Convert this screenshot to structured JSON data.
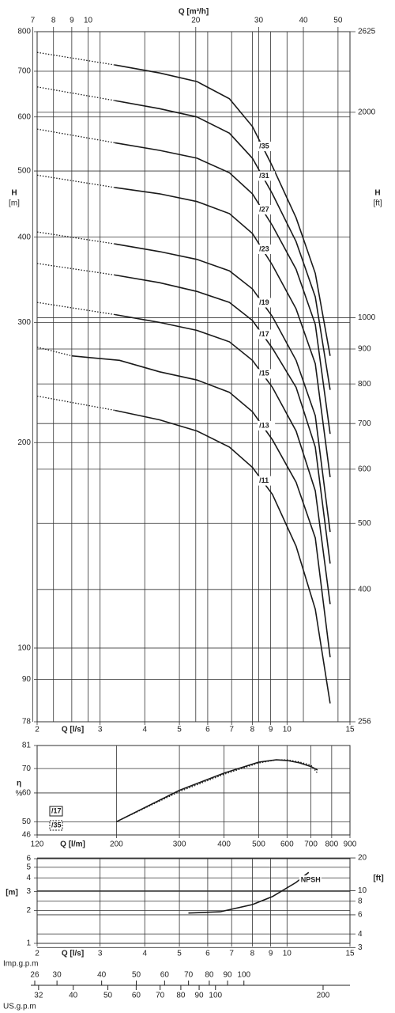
{
  "chart_data": [
    {
      "type": "line",
      "xscale": "log",
      "yscale": "log",
      "labels": "on-curve",
      "grid": true,
      "xlabel": "Q [l/s]",
      "xlim": [
        2,
        15
      ],
      "xticks": [
        2,
        3,
        4,
        5,
        6,
        7,
        8,
        9,
        10,
        15
      ],
      "x2label": "Q [m³/h]",
      "x2lim": [
        7.2,
        54
      ],
      "x2ticks": [
        7,
        8,
        9,
        10,
        20,
        30,
        40,
        50
      ],
      "ylabel": "H",
      "yunit": "[m]",
      "ylim": [
        78,
        800
      ],
      "yticks": [
        78,
        90,
        100,
        200,
        300,
        400,
        500,
        600,
        700,
        800
      ],
      "y2label": "H",
      "y2unit": "[ft]",
      "y2lim": [
        256,
        2625
      ],
      "y2ticks": [
        256,
        400,
        500,
        600,
        700,
        800,
        900,
        1000,
        2000,
        2625
      ],
      "series": [
        {
          "name": "/35",
          "color": "#1a1a1a",
          "style": "solid",
          "x": [
            3.3,
            4.4,
            5.6,
            6.9,
            8.0,
            9.1,
            10.6,
            12.0,
            13.2
          ],
          "values": [
            715,
            696,
            676,
            638,
            581,
            508,
            427,
            354,
            268
          ]
        },
        {
          "color": "#1a1a1a",
          "style": "dotted",
          "x": [
            2.0,
            3.3
          ],
          "values": [
            746,
            715
          ]
        },
        {
          "name": "/31",
          "color": "#1a1a1a",
          "style": "solid",
          "x": [
            3.3,
            4.4,
            5.6,
            6.9,
            8.0,
            9.1,
            10.6,
            12.0,
            13.2
          ],
          "values": [
            634,
            617,
            600,
            568,
            522,
            463,
            394,
            327,
            239
          ]
        },
        {
          "color": "#1a1a1a",
          "style": "dotted",
          "x": [
            2.0,
            3.3
          ],
          "values": [
            664,
            634
          ]
        },
        {
          "name": "/27",
          "color": "#1a1a1a",
          "style": "solid",
          "x": [
            3.3,
            4.4,
            5.6,
            6.9,
            8.0,
            9.1,
            10.6,
            12.0,
            13.2
          ],
          "values": [
            550,
            536,
            522,
            497,
            463,
            416,
            359,
            298,
            206
          ]
        },
        {
          "color": "#1a1a1a",
          "style": "dotted",
          "x": [
            2.0,
            3.3
          ],
          "values": [
            576,
            550
          ]
        },
        {
          "name": "/23",
          "color": "#1a1a1a",
          "style": "solid",
          "x": [
            3.3,
            4.4,
            5.6,
            6.9,
            8.0,
            9.1,
            10.6,
            12.0,
            13.2
          ],
          "values": [
            473,
            463,
            451,
            433,
            405,
            364,
            314,
            261,
            178
          ]
        },
        {
          "color": "#1a1a1a",
          "style": "dotted",
          "x": [
            2.0,
            3.3
          ],
          "values": [
            493,
            473
          ]
        },
        {
          "name": "/19",
          "color": "#1a1a1a",
          "style": "solid",
          "x": [
            3.3,
            4.4,
            5.6,
            6.9,
            8.0,
            9.1,
            10.6,
            12.0,
            13.2
          ],
          "values": [
            391,
            381,
            371,
            357,
            336,
            306,
            264,
            219,
            148
          ]
        },
        {
          "color": "#1a1a1a",
          "style": "dotted",
          "x": [
            2.0,
            3.3
          ],
          "values": [
            407,
            391
          ]
        },
        {
          "name": "/17",
          "color": "#1a1a1a",
          "style": "solid",
          "x": [
            3.3,
            4.4,
            5.6,
            6.9,
            8.0,
            9.1,
            10.6,
            12.0,
            13.2
          ],
          "values": [
            352,
            343,
            333,
            321,
            302,
            275,
            241,
            197,
            133
          ]
        },
        {
          "color": "#1a1a1a",
          "style": "dotted",
          "x": [
            2.0,
            3.3
          ],
          "values": [
            366,
            352
          ]
        },
        {
          "name": "/15",
          "color": "#1a1a1a",
          "style": "solid",
          "x": [
            3.3,
            4.4,
            5.6,
            6.9,
            8.0,
            9.1,
            10.6,
            12.0,
            13.2
          ],
          "values": [
            308,
            300,
            292,
            281,
            264,
            241,
            208,
            170,
            116
          ]
        },
        {
          "color": "#1a1a1a",
          "style": "dotted",
          "x": [
            2.0,
            3.3
          ],
          "values": [
            321,
            308
          ]
        },
        {
          "name": "/13",
          "color": "#1a1a1a",
          "style": "solid",
          "x": [
            2.5,
            3.4,
            4.4,
            5.6,
            6.9,
            8.0,
            9.1,
            10.6,
            12.0,
            13.2
          ],
          "values": [
            268,
            264,
            254,
            247,
            237,
            222,
            202,
            175,
            145,
            97
          ]
        },
        {
          "color": "#1a1a1a",
          "style": "dotted",
          "x": [
            2.0,
            2.5
          ],
          "values": [
            276,
            268
          ]
        },
        {
          "name": "/11",
          "color": "#1a1a1a",
          "style": "solid",
          "x": [
            3.3,
            4.4,
            5.6,
            6.9,
            8.0,
            9.1,
            10.6,
            12.0,
            13.2
          ],
          "values": [
            223,
            216,
            208,
            197,
            184,
            168,
            141,
            114,
            83
          ]
        },
        {
          "color": "#1a1a1a",
          "style": "dotted",
          "x": [
            2.0,
            3.3
          ],
          "values": [
            234,
            223
          ]
        }
      ]
    },
    {
      "type": "line",
      "xscale": "log",
      "yscale": "log",
      "legend": "lower left",
      "grid": true,
      "xlabel": "Q [l/m]",
      "xlim": [
        120,
        900
      ],
      "xticks": [
        120,
        200,
        300,
        400,
        500,
        600,
        700,
        800,
        900
      ],
      "ylabel": "η",
      "yunit": "%",
      "ylim": [
        46,
        81
      ],
      "yticks": [
        46,
        50,
        60,
        70,
        81
      ],
      "series": [
        {
          "name": "/17",
          "color": "#1a1a1a",
          "style": "solid",
          "x": [
            200,
            300,
            400,
            500,
            560,
            600,
            650,
            700,
            730
          ],
          "values": [
            50,
            61,
            68,
            72.9,
            74,
            73.7,
            72.6,
            70.9,
            69.4
          ]
        },
        {
          "name": "/35",
          "color": "#1a1a1a",
          "style": "dotted",
          "x": [
            200,
            300,
            400,
            500,
            560,
            600,
            650,
            700,
            730
          ],
          "values": [
            50,
            60.5,
            67.5,
            72.5,
            74,
            74,
            73,
            71.5,
            68
          ]
        }
      ]
    },
    {
      "type": "line",
      "xscale": "log",
      "yscale": "log",
      "labels": "on-curve",
      "grid": true,
      "xlabel": "Q [l/s]",
      "xlim": [
        2,
        15
      ],
      "xticks": [
        2,
        3,
        4,
        5,
        6,
        7,
        8,
        9,
        10,
        15
      ],
      "ylabel": "[m]",
      "ylim": [
        1,
        6
      ],
      "yticks": [
        1,
        2,
        3,
        4,
        5,
        6
      ],
      "y2label": "[ft]",
      "y2lim": [
        3.28,
        19.69
      ],
      "y2ticks": [
        3,
        4,
        6,
        8,
        10,
        20
      ],
      "series": [
        {
          "name": "NPSH",
          "color": "#1a1a1a",
          "style": "solid",
          "x": [
            5.3,
            6.5,
            8.0,
            9.1,
            10.6,
            11.5
          ],
          "values": [
            1.9,
            1.95,
            2.27,
            2.69,
            3.63,
            4.5
          ]
        }
      ]
    },
    {
      "type": "scales",
      "xscale": "log",
      "axes": [
        {
          "name": "Imp.g.p.m",
          "lim": [
            26.4,
            198
          ],
          "ticks": [
            26,
            30,
            40,
            50,
            60,
            70,
            80,
            90,
            100
          ]
        },
        {
          "name": "US.g.p.m",
          "lim": [
            31.7,
            237.8
          ],
          "ticks": [
            32,
            40,
            50,
            60,
            70,
            80,
            90,
            100,
            200
          ]
        }
      ]
    }
  ]
}
